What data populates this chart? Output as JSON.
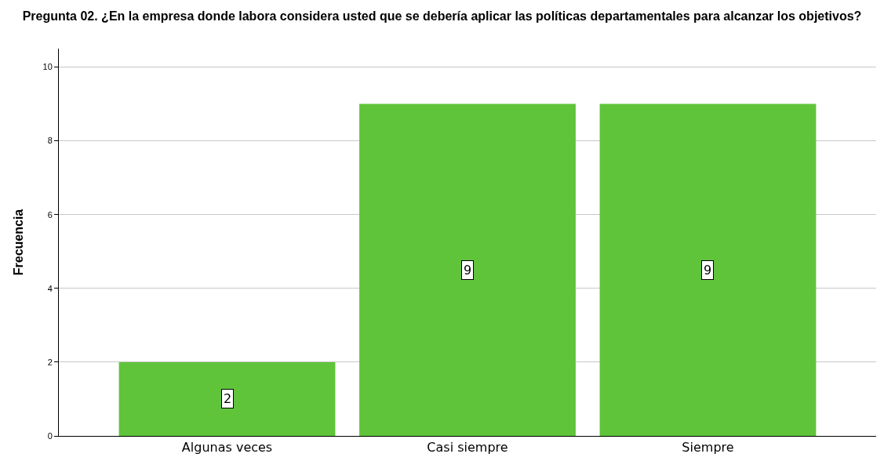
{
  "chart_data": {
    "type": "bar",
    "title": "Pregunta 02. ¿En la empresa donde labora considera usted que se debería aplicar las políticas departamentales para alcanzar los objetivos?",
    "ylabel": "Frecuencia",
    "categories": [
      "Algunas veces",
      "Casi siempre",
      "Siempre"
    ],
    "values": [
      2,
      9,
      9
    ],
    "color": "#5fc43a",
    "ylim": [
      0,
      10.5
    ],
    "yticks": [
      0,
      2,
      4,
      6,
      8,
      10
    ],
    "grid": "y",
    "data_labels": true
  }
}
